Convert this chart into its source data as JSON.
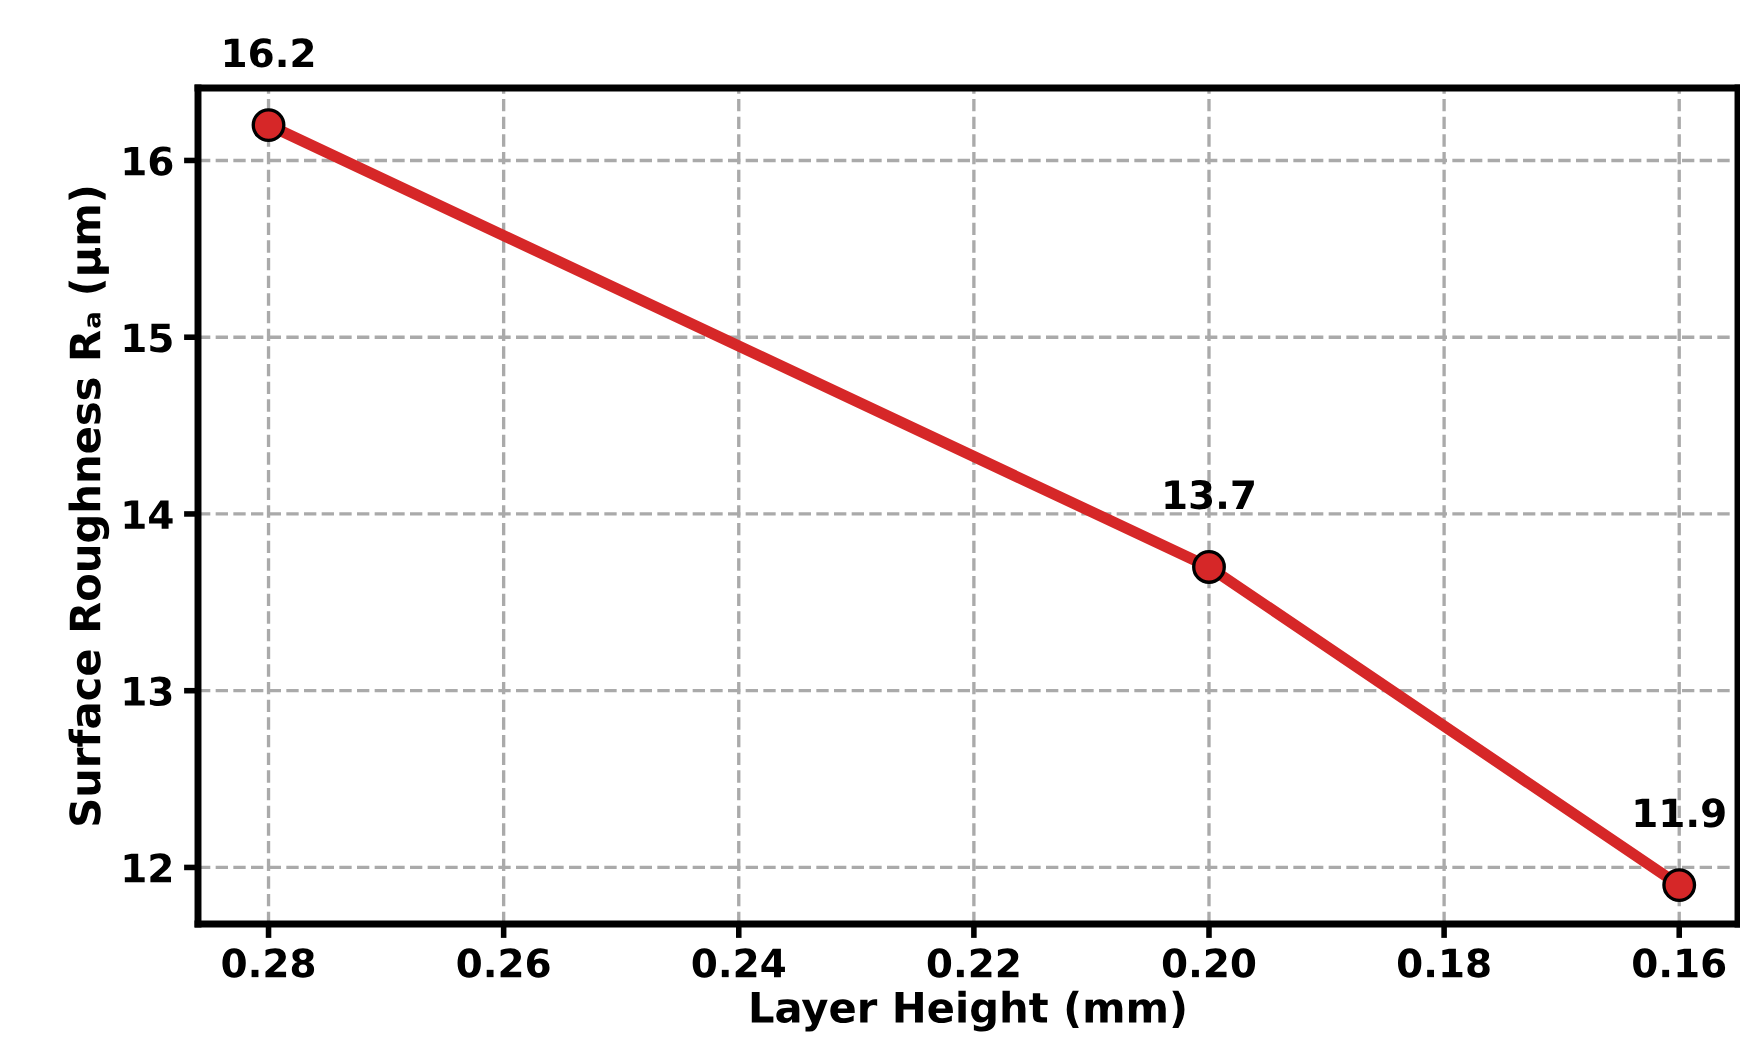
{
  "chart_data": {
    "type": "line",
    "xlabel": "Layer Height (mm)",
    "ylabel": "Surface Roughness Rₐ (µm)",
    "x": [
      0.28,
      0.2,
      0.16
    ],
    "series": [
      {
        "color": "#d62728",
        "values": [
          16.2,
          13.7,
          11.9
        ]
      }
    ],
    "xlim": [
      0.286,
      0.155
    ],
    "xticks": [
      {
        "value": 0.28,
        "label": "0.28"
      },
      {
        "value": 0.26,
        "label": "0.26"
      },
      {
        "value": 0.24,
        "label": "0.24"
      },
      {
        "value": 0.22,
        "label": "0.22"
      },
      {
        "value": 0.2,
        "label": "0.20"
      },
      {
        "value": 0.18,
        "label": "0.18"
      },
      {
        "value": 0.16,
        "label": "0.16"
      }
    ],
    "ylim": [
      11.68,
      16.41
    ],
    "yticks": [
      12,
      13,
      14,
      15,
      16
    ],
    "grid": true,
    "marker": "circle",
    "line_style": "solid",
    "data_labels": true
  }
}
